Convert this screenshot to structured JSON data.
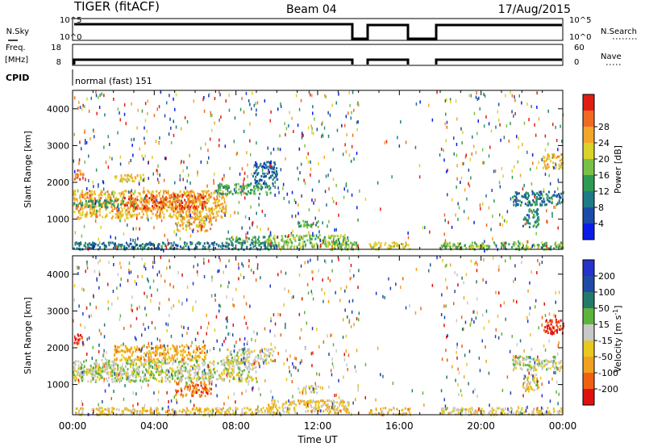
{
  "header": {
    "station": "TIGER (fitACF)",
    "beam": "Beam 04",
    "date": "17/Aug/2015"
  },
  "top_panels": {
    "nsky": {
      "label": "N.Sky",
      "ticks": [
        "10^5",
        "10^0"
      ]
    },
    "nsearch": {
      "label": "N.Search",
      "ticks": [
        "10^5",
        "10^0"
      ]
    },
    "freq": {
      "label": "Freq.",
      "unit": "[MHz]",
      "ticks": [
        "18",
        "8"
      ]
    },
    "nave": {
      "label": "Nave",
      "ticks": [
        "60",
        "0"
      ]
    },
    "cpid": {
      "label": "CPID",
      "text": "normal (fast) 151"
    }
  },
  "time_axis": {
    "title": "Time UT",
    "ticks": [
      "00:00",
      "04:00",
      "08:00",
      "12:00",
      "16:00",
      "20:00",
      "00:00"
    ]
  },
  "power_colorbar": {
    "title": "Power [dB]",
    "ticks": [
      "4",
      "8",
      "12",
      "16",
      "20",
      "24",
      "28"
    ],
    "colors": [
      "#0a1de8",
      "#1b4aa8",
      "#1e7a86",
      "#2f9a52",
      "#78c048",
      "#dcd22a",
      "#f4a62a",
      "#f06a24",
      "#e11c12"
    ]
  },
  "velocity_colorbar": {
    "title": "Velocity [m s",
    "superscript": "-1",
    "ticks": [
      "200",
      "100",
      "50",
      "15",
      "-15",
      "-50",
      "-100",
      "-200"
    ],
    "colors": [
      "#2532cc",
      "#1f4aa6",
      "#247a6a",
      "#5cb43c",
      "#c8c8c8",
      "#e8c820",
      "#f0a020",
      "#f06010",
      "#e01010"
    ]
  },
  "chart_data": [
    {
      "type": "heatmap",
      "name": "power",
      "ylabel": "Slant Range [km]",
      "xlabel": "",
      "xlim_hours": [
        0,
        24
      ],
      "ylim": [
        180,
        4500
      ],
      "yticks": [
        "1000",
        "2000",
        "3000",
        "4000"
      ],
      "zlim": [
        0,
        30
      ],
      "regions": [
        {
          "t": [
            0.0,
            7.5
          ],
          "r": [
            1050,
            1800
          ],
          "z": 21
        },
        {
          "t": [
            2.5,
            6.5
          ],
          "r": [
            1300,
            1700
          ],
          "z": 26
        },
        {
          "t": [
            0.0,
            2.5
          ],
          "r": [
            1350,
            1550
          ],
          "z": 11
        },
        {
          "t": [
            7.0,
            9.8
          ],
          "r": [
            1700,
            2000
          ],
          "z": 12
        },
        {
          "t": [
            8.8,
            10.0
          ],
          "r": [
            2000,
            2600
          ],
          "z": 6
        },
        {
          "t": [
            2.0,
            3.5
          ],
          "r": [
            2050,
            2250
          ],
          "z": 19
        },
        {
          "t": [
            5.0,
            6.8
          ],
          "r": [
            700,
            1100
          ],
          "z": 22
        },
        {
          "t": [
            7.5,
            9.5
          ],
          "r": [
            300,
            550
          ],
          "z": 12
        },
        {
          "t": [
            9.5,
            13.5
          ],
          "r": [
            250,
            600
          ],
          "z": 15
        },
        {
          "t": [
            11.0,
            12.0
          ],
          "r": [
            800,
            1000
          ],
          "z": 12
        },
        {
          "t": [
            12.5,
            14.0
          ],
          "r": [
            200,
            400
          ],
          "z": 14
        },
        {
          "t": [
            14.5,
            16.5
          ],
          "r": [
            200,
            400
          ],
          "z": 18
        },
        {
          "t": [
            18.0,
            24.0
          ],
          "r": [
            200,
            400
          ],
          "z": 14
        },
        {
          "t": [
            21.5,
            24.0
          ],
          "r": [
            1400,
            1800
          ],
          "z": 8
        },
        {
          "t": [
            23.0,
            24.0
          ],
          "r": [
            2400,
            2800
          ],
          "z": 20
        },
        {
          "t": [
            22.0,
            22.8
          ],
          "r": [
            800,
            1300
          ],
          "z": 10
        },
        {
          "t": [
            0.0,
            0.5
          ],
          "r": [
            2100,
            2400
          ],
          "z": 25
        },
        {
          "t": [
            0.0,
            10.0
          ],
          "r": [
            200,
            400
          ],
          "z": 8
        }
      ]
    },
    {
      "type": "heatmap",
      "name": "velocity",
      "ylabel": "Slant Range [km]",
      "xlabel": "Time UT",
      "xlim_hours": [
        0,
        24
      ],
      "ylim": [
        180,
        4500
      ],
      "yticks": [
        "1000",
        "2000",
        "3000",
        "4000"
      ],
      "zlim": [
        -250,
        250
      ],
      "regions": [
        {
          "t": [
            0.0,
            9.0
          ],
          "r": [
            1100,
            1700
          ],
          "z": 0
        },
        {
          "t": [
            0.0,
            2.5
          ],
          "r": [
            1300,
            1500
          ],
          "z": 5
        },
        {
          "t": [
            2.0,
            6.5
          ],
          "r": [
            1700,
            2100
          ],
          "z": -90
        },
        {
          "t": [
            5.0,
            6.8
          ],
          "r": [
            700,
            1100
          ],
          "z": -150
        },
        {
          "t": [
            7.5,
            9.8
          ],
          "r": [
            1600,
            2000
          ],
          "z": -20
        },
        {
          "t": [
            9.5,
            13.5
          ],
          "r": [
            250,
            600
          ],
          "z": -60
        },
        {
          "t": [
            11.0,
            12.0
          ],
          "r": [
            800,
            1000
          ],
          "z": 0
        },
        {
          "t": [
            14.5,
            16.5
          ],
          "r": [
            200,
            400
          ],
          "z": -80
        },
        {
          "t": [
            18.0,
            24.0
          ],
          "r": [
            200,
            400
          ],
          "z": -40
        },
        {
          "t": [
            21.5,
            24.0
          ],
          "r": [
            1400,
            1800
          ],
          "z": 5
        },
        {
          "t": [
            23.0,
            24.0
          ],
          "r": [
            2400,
            2800
          ],
          "z": -200
        },
        {
          "t": [
            22.0,
            22.8
          ],
          "r": [
            800,
            1300
          ],
          "z": -30
        },
        {
          "t": [
            0.0,
            0.5
          ],
          "r": [
            2100,
            2400
          ],
          "z": -200
        },
        {
          "t": [
            0.0,
            10.0
          ],
          "r": [
            200,
            400
          ],
          "z": -60
        }
      ]
    }
  ]
}
